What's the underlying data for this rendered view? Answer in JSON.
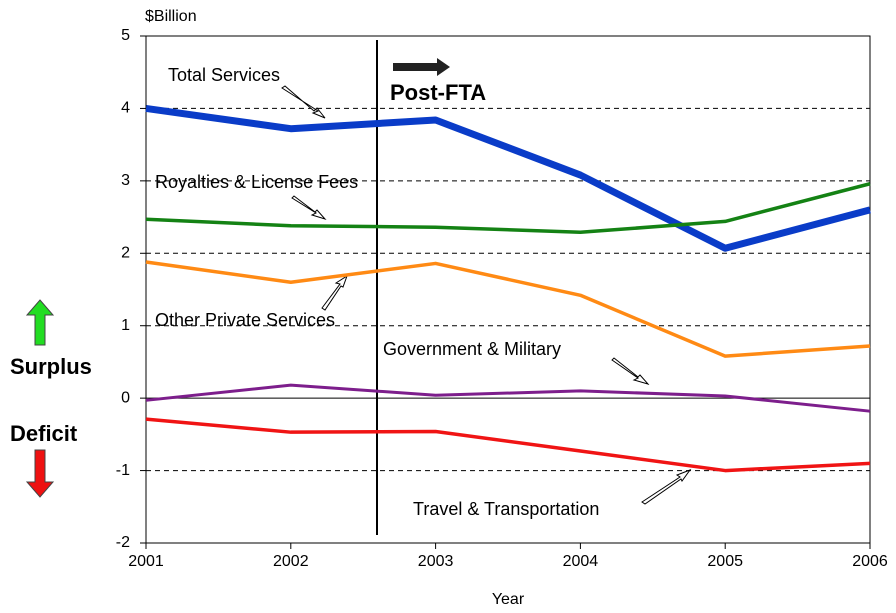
{
  "chart_data": {
    "type": "line",
    "y_unit_label": "$Billion",
    "xlabel": "Year",
    "x": [
      2001,
      2002,
      2003,
      2004,
      2005,
      2006
    ],
    "xlim": [
      2001,
      2006
    ],
    "xticks": [
      2001,
      2002,
      2003,
      2004,
      2005,
      2006
    ],
    "ylim": [
      -2,
      5
    ],
    "yticks": [
      -2,
      -1,
      0,
      1,
      2,
      3,
      4,
      5
    ],
    "grid": true,
    "series": [
      {
        "name": "Total Services",
        "color": "#0a3cc8",
        "values": [
          4.0,
          3.72,
          3.84,
          3.08,
          2.07,
          2.6
        ]
      },
      {
        "name": "Royalties & License Fees",
        "color": "#148214",
        "values": [
          2.47,
          2.38,
          2.36,
          2.29,
          2.44,
          2.96
        ]
      },
      {
        "name": "Other Private Services",
        "color": "#ff8a14",
        "values": [
          1.88,
          1.6,
          1.86,
          1.42,
          0.58,
          0.72
        ]
      },
      {
        "name": "Government & Military",
        "color": "#7d1e8c",
        "values": [
          -0.03,
          0.18,
          0.04,
          0.1,
          0.03,
          -0.18
        ]
      },
      {
        "name": "Travel & Transportation",
        "color": "#f01414",
        "values": [
          -0.29,
          -0.47,
          -0.46,
          -0.73,
          -1.0,
          -0.9
        ]
      }
    ],
    "annotations": [
      "Post-FTA",
      "Surplus",
      "Deficit"
    ]
  }
}
